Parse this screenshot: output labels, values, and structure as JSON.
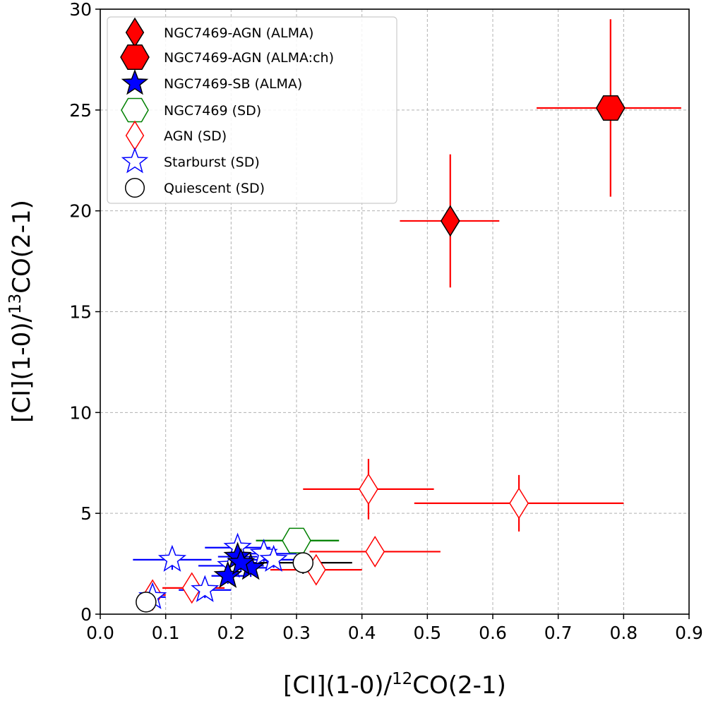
{
  "chart_data": {
    "type": "scatter",
    "xlabel": "[CI](1-0)/12CO(2-1)",
    "xlabel_parts": {
      "pre": "[CI](1-0)/",
      "sup": "12",
      "post": "CO(2-1)"
    },
    "ylabel": "[CI](1-0)/13CO(2-1)",
    "ylabel_parts": {
      "pre": "[CI](1-0)/",
      "sup": "13",
      "post": "CO(2-1)"
    },
    "xlim": [
      0.0,
      0.9
    ],
    "ylim": [
      0,
      30
    ],
    "xticks": [
      "0.0",
      "0.1",
      "0.2",
      "0.3",
      "0.4",
      "0.5",
      "0.6",
      "0.7",
      "0.8",
      "0.9"
    ],
    "yticks": [
      "0",
      "5",
      "10",
      "15",
      "20",
      "25",
      "30"
    ],
    "grid": true,
    "legend_position": "top-left",
    "series": [
      {
        "name": "NGC7469-AGN (ALMA)",
        "marker": "diamond",
        "fill": "#ff0000",
        "edge": "#000000",
        "err": "#ff0000",
        "points": [
          {
            "x": 0.535,
            "y": 19.5,
            "xerr": [
              0.458,
              0.61
            ],
            "yerr": [
              16.2,
              22.8
            ]
          }
        ]
      },
      {
        "name": "NGC7469-AGN (ALMA:ch)",
        "marker": "hexagon",
        "fill": "#ff0000",
        "edge": "#000000",
        "err": "#ff0000",
        "points": [
          {
            "x": 0.78,
            "y": 25.1,
            "xerr": [
              0.667,
              0.888
            ],
            "yerr": [
              20.7,
              29.5
            ]
          }
        ]
      },
      {
        "name": "NGC7469-SB (ALMA)",
        "marker": "star",
        "fill": "#0000ff",
        "edge": "#000000",
        "err": "#0000ff",
        "points": [
          {
            "x": 0.21,
            "y": 2.85,
            "xerr": [
              0.18,
              0.24
            ],
            "yerr": [
              2.4,
              3.3
            ]
          },
          {
            "x": 0.23,
            "y": 2.3,
            "xerr": [
              0.2,
              0.26
            ],
            "yerr": [
              1.85,
              2.75
            ]
          },
          {
            "x": 0.195,
            "y": 1.9,
            "xerr": [
              0.17,
              0.22
            ],
            "yerr": [
              1.5,
              2.3
            ]
          },
          {
            "x": 0.215,
            "y": 2.55,
            "xerr": [
              0.19,
              0.24
            ],
            "yerr": [
              2.1,
              3.0
            ]
          }
        ]
      },
      {
        "name": "NGC7469 (SD)",
        "marker": "hexagon",
        "fill": "none",
        "edge": "#008000",
        "err": "#008000",
        "points": [
          {
            "x": 0.3,
            "y": 3.65,
            "xerr": [
              0.238,
              0.365
            ],
            "yerr": [
              3.1,
              4.2
            ]
          }
        ]
      },
      {
        "name": "AGN (SD)",
        "marker": "diamond",
        "fill": "none",
        "edge": "#ff0000",
        "err": "#ff0000",
        "points": [
          {
            "x": 0.41,
            "y": 6.2,
            "xerr": [
              0.31,
              0.51
            ],
            "yerr": [
              4.7,
              7.7
            ]
          },
          {
            "x": 0.64,
            "y": 5.5,
            "xerr": [
              0.48,
              0.8
            ],
            "yerr": [
              4.1,
              6.9
            ]
          },
          {
            "x": 0.42,
            "y": 3.1,
            "xerr": [
              0.32,
              0.52
            ],
            "yerr": [
              2.5,
              3.7
            ]
          },
          {
            "x": 0.33,
            "y": 2.2,
            "xerr": [
              0.26,
              0.4
            ],
            "yerr": [
              1.6,
              2.8
            ]
          },
          {
            "x": 0.14,
            "y": 1.3,
            "xerr": [
              0.095,
              0.19
            ],
            "yerr": [
              0.9,
              1.7
            ]
          },
          {
            "x": 0.08,
            "y": 0.95,
            "xerr": [
              0.06,
              0.1
            ],
            "yerr": [
              0.6,
              1.3
            ]
          }
        ]
      },
      {
        "name": "Starburst (SD)",
        "marker": "star",
        "fill": "none",
        "edge": "#0000ff",
        "err": "#0000ff",
        "points": [
          {
            "x": 0.11,
            "y": 2.7,
            "xerr": [
              0.05,
              0.17
            ],
            "yerr": [
              2.2,
              3.2
            ]
          },
          {
            "x": 0.16,
            "y": 1.2,
            "xerr": [
              0.12,
              0.2
            ],
            "yerr": [
              0.8,
              1.6
            ]
          },
          {
            "x": 0.21,
            "y": 3.3,
            "xerr": [
              0.16,
              0.26
            ],
            "yerr": [
              2.8,
              3.8
            ]
          },
          {
            "x": 0.25,
            "y": 3.0,
            "xerr": [
              0.2,
              0.3
            ],
            "yerr": [
              2.6,
              3.4
            ]
          },
          {
            "x": 0.265,
            "y": 2.7,
            "xerr": [
              0.22,
              0.31
            ],
            "yerr": [
              2.3,
              3.1
            ]
          },
          {
            "x": 0.2,
            "y": 2.4,
            "xerr": [
              0.15,
              0.25
            ],
            "yerr": [
              2.0,
              2.8
            ]
          },
          {
            "x": 0.08,
            "y": 0.85,
            "xerr": [
              0.06,
              0.1
            ],
            "yerr": [
              0.5,
              1.2
            ]
          }
        ]
      },
      {
        "name": "Quiescent (SD)",
        "marker": "circle",
        "fill": "#ffffff",
        "edge": "#000000",
        "err": "#000000",
        "points": [
          {
            "x": 0.07,
            "y": 0.6,
            "xerr": [
              0.06,
              0.08
            ],
            "yerr": [
              0.3,
              0.9
            ]
          },
          {
            "x": 0.31,
            "y": 2.55,
            "xerr": [
              0.24,
              0.385
            ],
            "yerr": [
              2.0,
              3.1
            ]
          }
        ]
      }
    ]
  }
}
